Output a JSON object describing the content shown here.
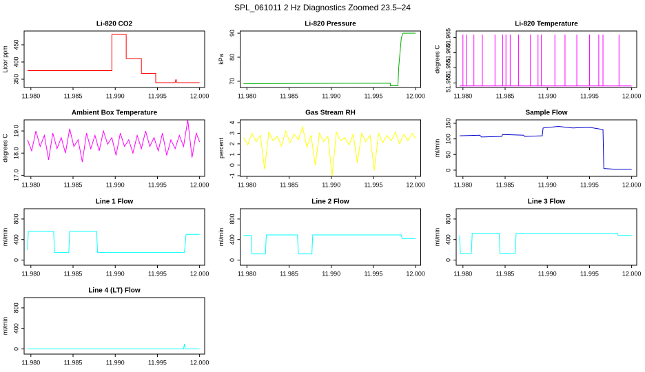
{
  "title": "SPL_061011 2 Hz Diagnostics Zoomed 23.5–24",
  "chart_data": [
    {
      "type": "line",
      "title": "Li-820 CO2",
      "ylabel": "Licor ppm",
      "xlim": [
        11.9792,
        12.0006
      ],
      "ylim": [
        326,
        490
      ],
      "xticks": [
        {
          "value": 11.98,
          "label": "11.980"
        },
        {
          "value": 11.985,
          "label": "11.985"
        },
        {
          "value": 11.99,
          "label": "11.990"
        },
        {
          "value": 11.995,
          "label": "11.995"
        },
        {
          "value": 12,
          "label": "12.000"
        }
      ],
      "yticks": [
        350,
        400,
        450
      ],
      "series": [
        {
          "color": "#ff0000",
          "x": [
            11.9796,
            11.9896,
            11.9896,
            11.9913,
            11.9913,
            11.9931,
            11.9931,
            11.9948,
            11.9948,
            11.9971,
            11.9972,
            11.9973,
            12.0
          ],
          "values": [
            375,
            375,
            480,
            480,
            410,
            410,
            367,
            367,
            340,
            340,
            350,
            340,
            340
          ]
        }
      ]
    },
    {
      "type": "line",
      "title": "Li-820 Pressure",
      "ylabel": "kPa",
      "xlim": [
        11.9792,
        12.0006
      ],
      "ylim": [
        67.4,
        90.9
      ],
      "xticks": [
        {
          "value": 11.98,
          "label": "11.980"
        },
        {
          "value": 11.985,
          "label": "11.985"
        },
        {
          "value": 11.99,
          "label": "11.990"
        },
        {
          "value": 11.995,
          "label": "11.995"
        },
        {
          "value": 12,
          "label": "12.000"
        }
      ],
      "yticks": [
        70,
        80,
        90
      ],
      "series": [
        {
          "color": "#00b000",
          "x": [
            11.9796,
            11.997,
            11.997,
            11.9979,
            11.998,
            11.9983,
            11.9985,
            12.0
          ],
          "values": [
            69,
            69.2,
            68.1,
            68.1,
            76,
            88,
            90,
            90
          ]
        }
      ]
    },
    {
      "type": "line",
      "title": "Li-820 Temperature",
      "ylabel": "degrees C",
      "xlim": [
        11.9792,
        12.0006
      ],
      "ylim": [
        51.9485,
        51.9672
      ],
      "xticks": [
        {
          "value": 11.98,
          "label": "11.980"
        },
        {
          "value": 11.985,
          "label": "11.985"
        },
        {
          "value": 11.99,
          "label": "11.990"
        },
        {
          "value": 11.995,
          "label": "11.995"
        },
        {
          "value": 12,
          "label": "12.000"
        }
      ],
      "yticks": [
        {
          "value": 51.95,
          "label": "51.950"
        },
        {
          "value": 51.955,
          "label": "51.955"
        },
        {
          "value": 51.96,
          "label": "51.960"
        },
        {
          "value": 51.965,
          "label": "51.965"
        }
      ],
      "series": [
        {
          "color": "#ff00ff",
          "x": [
            11.9796,
            11.98,
            11.98,
            11.98,
            11.9804,
            11.9804,
            11.9804,
            11.9813,
            11.9813,
            11.9813,
            11.9823,
            11.9823,
            11.9823,
            11.9838,
            11.9838,
            11.9838,
            11.9847,
            11.9847,
            11.9847,
            11.9851,
            11.9851,
            11.9851,
            11.9856,
            11.9856,
            11.9856,
            11.9866,
            11.9866,
            11.9866,
            11.988,
            11.988,
            11.988,
            11.9889,
            11.9889,
            11.9889,
            11.9893,
            11.9893,
            11.9893,
            11.9909,
            11.9909,
            11.9909,
            11.9921,
            11.9921,
            11.9921,
            11.9935,
            11.9935,
            11.9935,
            11.995,
            11.995,
            11.995,
            11.9961,
            11.9961,
            11.9961,
            11.9966,
            11.9966,
            11.9966,
            11.9985,
            11.9985,
            11.9985,
            12.0
          ],
          "values": [
            51.949,
            51.949,
            51.966,
            51.949,
            51.949,
            51.966,
            51.949,
            51.949,
            51.966,
            51.949,
            51.949,
            51.966,
            51.949,
            51.949,
            51.966,
            51.949,
            51.949,
            51.966,
            51.949,
            51.949,
            51.966,
            51.949,
            51.949,
            51.966,
            51.949,
            51.949,
            51.966,
            51.949,
            51.949,
            51.966,
            51.949,
            51.949,
            51.966,
            51.949,
            51.949,
            51.966,
            51.949,
            51.949,
            51.966,
            51.949,
            51.949,
            51.966,
            51.949,
            51.949,
            51.966,
            51.949,
            51.949,
            51.966,
            51.949,
            51.949,
            51.966,
            51.949,
            51.949,
            51.966,
            51.949,
            51.949,
            51.966,
            51.949,
            51.949
          ]
        }
      ]
    },
    {
      "type": "line",
      "title": "Ambient Box Temperature",
      "ylabel": "degrees C",
      "xlim": [
        11.9792,
        12.0006
      ],
      "ylim": [
        16.95,
        19.5
      ],
      "xticks": [
        {
          "value": 11.98,
          "label": "11.980"
        },
        {
          "value": 11.985,
          "label": "11.985"
        },
        {
          "value": 11.99,
          "label": "11.990"
        },
        {
          "value": 11.995,
          "label": "11.995"
        },
        {
          "value": 12,
          "label": "12.000"
        }
      ],
      "yticks": [
        {
          "value": 17,
          "label": "17.0"
        },
        {
          "value": 18,
          "label": "18.0"
        },
        {
          "value": 19,
          "label": "19.0"
        }
      ],
      "series": [
        {
          "color": "#ff00ff",
          "x": [
            11.9796,
            11.9801,
            11.9806,
            11.9811,
            11.9816,
            11.9821,
            11.9826,
            11.9831,
            11.9836,
            11.9841,
            11.9846,
            11.9851,
            11.9856,
            11.9861,
            11.9866,
            11.9871,
            11.9876,
            11.9881,
            11.9886,
            11.9891,
            11.9896,
            11.9901,
            11.9906,
            11.9911,
            11.9916,
            11.9921,
            11.9926,
            11.9931,
            11.9936,
            11.9941,
            11.9946,
            11.9951,
            11.9956,
            11.9961,
            11.9966,
            11.9971,
            11.9976,
            11.9981,
            11.9986,
            11.9991,
            11.9996,
            12.0
          ],
          "values": [
            18.6,
            18.1,
            19.0,
            18.3,
            18.8,
            17.7,
            18.9,
            18.2,
            18.7,
            18.0,
            19.1,
            18.3,
            18.6,
            17.6,
            18.9,
            18.2,
            18.8,
            18.1,
            19.0,
            18.4,
            18.7,
            17.9,
            18.9,
            18.3,
            18.6,
            18.0,
            18.8,
            18.2,
            19.0,
            18.3,
            18.7,
            18.1,
            18.9,
            17.9,
            18.6,
            18.2,
            18.8,
            18.3,
            19.5,
            17.8,
            18.9,
            18.5
          ]
        }
      ]
    },
    {
      "type": "line",
      "title": "Gas Stream RH",
      "ylabel": "percent",
      "xlim": [
        11.9792,
        12.0006
      ],
      "ylim": [
        -1.06,
        4.26
      ],
      "xticks": [
        {
          "value": 11.98,
          "label": "11.980"
        },
        {
          "value": 11.985,
          "label": "11.985"
        },
        {
          "value": 11.99,
          "label": "11.990"
        },
        {
          "value": 11.995,
          "label": "11.995"
        },
        {
          "value": 12,
          "label": "12.000"
        }
      ],
      "yticks": [
        -1,
        0,
        1,
        2,
        3,
        4
      ],
      "series": [
        {
          "color": "#ffff00",
          "x": [
            11.9796,
            11.9801,
            11.9806,
            11.9811,
            11.9816,
            11.9821,
            11.9826,
            11.9831,
            11.9836,
            11.9841,
            11.9846,
            11.9851,
            11.9856,
            11.9861,
            11.9866,
            11.9871,
            11.9876,
            11.9881,
            11.9886,
            11.9891,
            11.9896,
            11.9901,
            11.9906,
            11.9911,
            11.9916,
            11.9921,
            11.9926,
            11.9931,
            11.9936,
            11.9941,
            11.9946,
            11.9951,
            11.9956,
            11.9961,
            11.9966,
            11.9971,
            11.9976,
            11.9981,
            11.9986,
            11.9991,
            11.9996,
            12.0
          ],
          "values": [
            2.6,
            1.9,
            3.0,
            2.2,
            2.8,
            -0.4,
            3.1,
            2.3,
            2.7,
            1.8,
            3.2,
            2.1,
            2.9,
            2.4,
            3.6,
            1.7,
            2.8,
            0.0,
            3.0,
            2.2,
            2.7,
            -1.0,
            3.1,
            2.3,
            2.6,
            1.9,
            2.9,
            0.2,
            3.0,
            2.2,
            2.8,
            -0.5,
            3.0,
            2.1,
            2.8,
            2.3,
            3.1,
            2.0,
            2.9,
            2.3,
            3.0,
            2.5
          ]
        }
      ]
    },
    {
      "type": "line",
      "title": "Sample Flow",
      "ylabel": "ml/min",
      "xlim": [
        11.9792,
        12.0006
      ],
      "ylim": [
        -20,
        161
      ],
      "xticks": [
        {
          "value": 11.98,
          "label": "11.980"
        },
        {
          "value": 11.985,
          "label": "11.985"
        },
        {
          "value": 11.99,
          "label": "11.990"
        },
        {
          "value": 11.995,
          "label": "11.995"
        },
        {
          "value": 12,
          "label": "12.000"
        }
      ],
      "yticks": [
        0,
        50,
        100,
        150
      ],
      "series": [
        {
          "color": "#0000cc",
          "x": [
            11.9796,
            11.982,
            11.9822,
            11.9846,
            11.9847,
            11.9872,
            11.9873,
            11.9894,
            11.9895,
            11.9913,
            11.993,
            11.995,
            11.9966,
            11.9967,
            11.998,
            12.0
          ],
          "values": [
            110,
            112,
            106,
            108,
            114,
            112,
            108,
            110,
            135,
            140,
            135,
            137,
            130,
            5,
            3,
            3
          ]
        }
      ]
    },
    {
      "type": "line",
      "title": "Line 1 Flow",
      "ylabel": "ml/min",
      "xlim": [
        11.9792,
        12.0006
      ],
      "ylim": [
        -100,
        1000
      ],
      "xticks": [
        {
          "value": 11.98,
          "label": "11.980"
        },
        {
          "value": 11.985,
          "label": "11.985"
        },
        {
          "value": 11.99,
          "label": "11.990"
        },
        {
          "value": 11.995,
          "label": "11.995"
        },
        {
          "value": 12,
          "label": "12.000"
        }
      ],
      "yticks": [
        0,
        400,
        800
      ],
      "series": [
        {
          "color": "#00ffff",
          "x": [
            11.9796,
            11.9797,
            11.9827,
            11.9828,
            11.9845,
            11.9846,
            11.9878,
            11.9879,
            11.9982,
            11.9984,
            12.0
          ],
          "values": [
            200,
            560,
            560,
            150,
            150,
            560,
            560,
            150,
            150,
            500,
            500
          ]
        }
      ]
    },
    {
      "type": "line",
      "title": "Line 2 Flow",
      "ylabel": "ml/min",
      "xlim": [
        11.9792,
        12.0006
      ],
      "ylim": [
        -100,
        1000
      ],
      "xticks": [
        {
          "value": 11.98,
          "label": "11.980"
        },
        {
          "value": 11.985,
          "label": "11.985"
        },
        {
          "value": 11.99,
          "label": "11.990"
        },
        {
          "value": 11.995,
          "label": "11.995"
        },
        {
          "value": 12,
          "label": "12.000"
        }
      ],
      "yticks": [
        0,
        400,
        800
      ],
      "series": [
        {
          "color": "#00ffff",
          "x": [
            11.9796,
            11.9805,
            11.9806,
            11.9822,
            11.9823,
            11.986,
            11.9861,
            11.9877,
            11.9878,
            11.9983,
            11.9984,
            12.0
          ],
          "values": [
            480,
            480,
            120,
            120,
            490,
            490,
            120,
            120,
            490,
            490,
            420,
            420
          ]
        }
      ]
    },
    {
      "type": "line",
      "title": "Line 3 Flow",
      "ylabel": "ml/min",
      "xlim": [
        11.9792,
        12.0006
      ],
      "ylim": [
        -100,
        1000
      ],
      "xticks": [
        {
          "value": 11.98,
          "label": "11.980"
        },
        {
          "value": 11.985,
          "label": "11.985"
        },
        {
          "value": 11.99,
          "label": "11.990"
        },
        {
          "value": 11.995,
          "label": "11.995"
        },
        {
          "value": 12,
          "label": "12.000"
        }
      ],
      "yticks": [
        0,
        400,
        800
      ],
      "series": [
        {
          "color": "#00ffff",
          "x": [
            11.9796,
            11.9797,
            11.981,
            11.9811,
            11.9843,
            11.9844,
            11.9862,
            11.9863,
            11.9983,
            11.9984,
            12.0
          ],
          "values": [
            480,
            130,
            130,
            520,
            520,
            130,
            130,
            520,
            520,
            480,
            480
          ]
        }
      ]
    },
    {
      "type": "line",
      "title": "Line 4 (LT) Flow",
      "ylabel": "ml/min",
      "xlim": [
        11.9792,
        12.0006
      ],
      "ylim": [
        -100,
        1000
      ],
      "xticks": [
        {
          "value": 11.98,
          "label": "11.980"
        },
        {
          "value": 11.985,
          "label": "11.985"
        },
        {
          "value": 11.99,
          "label": "11.990"
        },
        {
          "value": 11.995,
          "label": "11.995"
        },
        {
          "value": 12,
          "label": "12.000"
        }
      ],
      "yticks": [
        0,
        400,
        800
      ],
      "series": [
        {
          "color": "#00ffff",
          "x": [
            11.9796,
            11.9981,
            11.9982,
            11.9983,
            12.0
          ],
          "values": [
            0,
            0,
            100,
            0,
            0
          ]
        }
      ]
    }
  ]
}
